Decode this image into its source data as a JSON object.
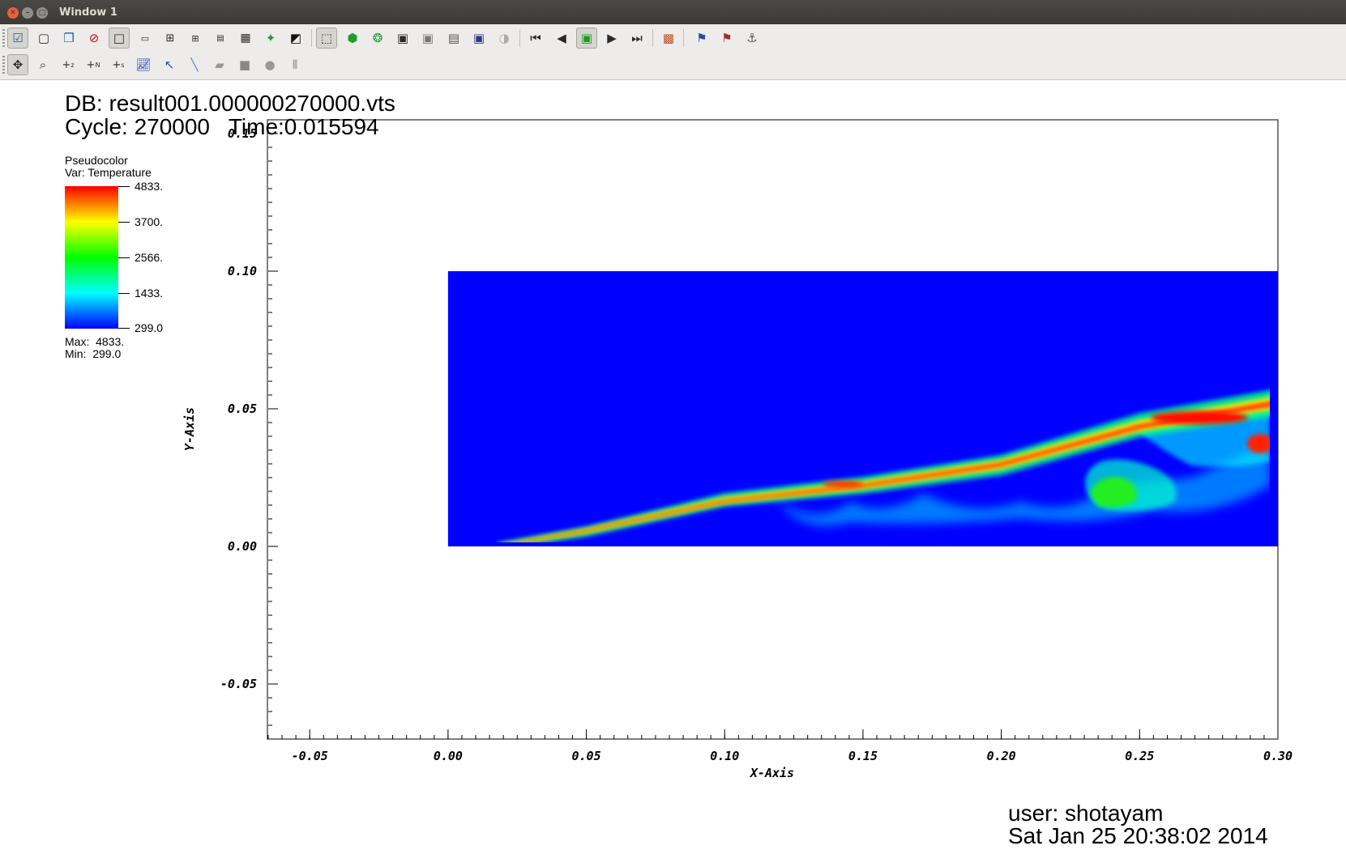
{
  "window": {
    "title": "Window 1"
  },
  "toolbar1": {
    "icons": [
      "active-window-checkbox-icon",
      "new-window-icon",
      "clone-window-icon",
      "delete-window-icon",
      "layout-1x1-icon",
      "layout-1x2-icon",
      "layout-2x2-icon",
      "layout-3x2-icon",
      "layout-2x4-icon",
      "layout-3x3-icon",
      "lock-view-icon",
      "invert-background-icon",
      "perspective-cube-icon",
      "lock-time-icon",
      "lock-tools-icon",
      "camera-icon",
      "camera-grey-icon",
      "camera-stack-icon",
      "camera-tripod-icon",
      "spin-icon",
      "skip-back-icon",
      "step-back-icon",
      "stop-icon",
      "play-icon",
      "skip-forward-icon",
      "window-info-icon",
      "pick-plot-icon",
      "pick-time-icon",
      "pick-lock-icon"
    ]
  },
  "toolbar2": {
    "icons": [
      "navigate-icon",
      "zoom-icon",
      "zone-pick-icon",
      "node-pick-icon",
      "spreadsheet-pick-icon",
      "lineout-icon",
      "pick-arrow-icon",
      "line-tool-icon",
      "box-tool-icon",
      "plane-tool-icon",
      "sphere-tool-icon",
      "axis-restrict-icon"
    ]
  },
  "annotation": {
    "db": "DB: result001.000000270000.vts",
    "cycle": "Cycle: 270000   Time:0.015594",
    "user": "user: shotayam",
    "date": "Sat Jan 25 20:38:02 2014"
  },
  "legend": {
    "plot_type": "Pseudocolor",
    "var": "Var: Temperature",
    "ticks": [
      "4833.",
      "3700.",
      "2566.",
      "1433.",
      "299.0"
    ],
    "max": "Max:  4833.",
    "min": "Min:  299.0",
    "colormap": [
      "#0000ff",
      "#00ffff",
      "#00ff00",
      "#ffff00",
      "#ff0000"
    ]
  },
  "chart_data": {
    "type": "heatmap",
    "xlabel": "X-Axis",
    "ylabel": "Y-Axis",
    "xlim": [
      -0.065,
      0.3
    ],
    "ylim": [
      -0.07,
      0.155
    ],
    "x_ticks": [
      "-0.05",
      "0.00",
      "0.05",
      "0.10",
      "0.15",
      "0.20",
      "0.25",
      "0.30"
    ],
    "x_tick_values": [
      -0.05,
      0.0,
      0.05,
      0.1,
      0.15,
      0.2,
      0.25,
      0.3
    ],
    "y_ticks": [
      "-0.05",
      "0.00",
      "0.05",
      "0.10",
      "0.15"
    ],
    "y_tick_values": [
      -0.05,
      0.0,
      0.05,
      0.1,
      0.15
    ],
    "domain": {
      "x": [
        0.0,
        0.3
      ],
      "y": [
        0.0,
        0.1
      ]
    },
    "background_color": "#0000ff",
    "hot_layer_center_y": [
      [
        0.018,
        0.0
      ],
      [
        0.05,
        0.006
      ],
      [
        0.1,
        0.016
      ],
      [
        0.15,
        0.022
      ],
      [
        0.2,
        0.03
      ],
      [
        0.25,
        0.043
      ],
      [
        0.3,
        0.052
      ]
    ]
  }
}
